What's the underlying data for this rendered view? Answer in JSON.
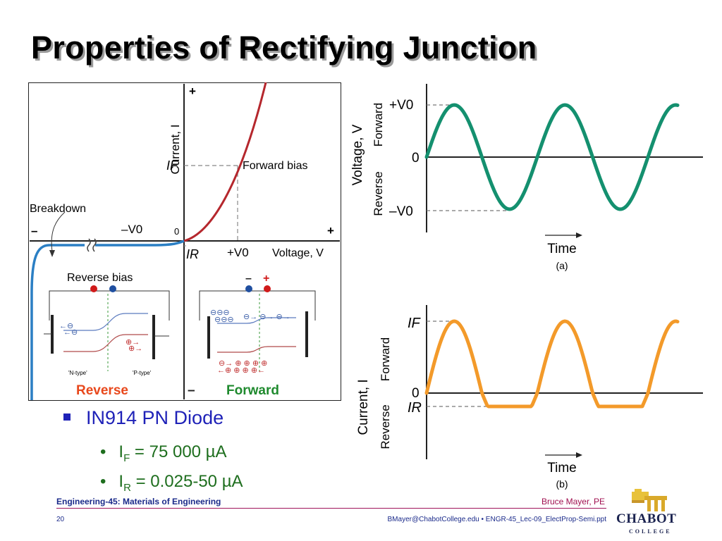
{
  "slide": {
    "title": "Properties of Rectifying Junction",
    "bullet": "IN914 PN Diode",
    "sub1": {
      "prefix": "I",
      "subscript": "F",
      "rest": " = 75 000 µA"
    },
    "sub2": {
      "prefix": "I",
      "subscript": "R",
      "rest": " = 0.025-50 µA"
    }
  },
  "iv_chart": {
    "current_axis_label": "Current, I",
    "voltage_axis_label": "Voltage, V",
    "plus_top": "+",
    "plus_right": "+",
    "minus_left": "–",
    "minus_bottom": "–",
    "origin_label": "0",
    "neg_v0_label": "–V0",
    "pos_v0_label": "+V0",
    "if_label": "IF",
    "ir_label": "IR",
    "breakdown_label": "Breakdown",
    "forward_bias_label": "Forward bias",
    "reverse_bias_label": "Reverse bias",
    "reverse_caption": "Reverse",
    "forward_caption": "Forward",
    "n_type_label": "'N-type'",
    "p_type_label": "'P-type'",
    "minus_sign": "–",
    "plus_sign": "+",
    "forward_curve_color": "#b5272d",
    "reverse_curve_color": "#2b7fc4",
    "reverse_caption_color": "#e8481c",
    "forward_caption_color": "#1f8a2e"
  },
  "voltage_chart": {
    "panel_label": "(a)",
    "y_axis_label": "Voltage, V",
    "forward_label": "Forward",
    "reverse_label": "Reverse",
    "pos_label": "+V0",
    "zero_label": "0",
    "neg_label": "–V0",
    "time_label": "Time",
    "color": "#14906f"
  },
  "current_chart": {
    "panel_label": "(b)",
    "y_axis_label": "Current, I",
    "forward_label": "Forward",
    "reverse_label": "Reverse",
    "if_label": "IF",
    "zero_label": "0",
    "ir_label": "IR",
    "time_label": "Time",
    "color": "#f39a2a"
  },
  "footer": {
    "course": "Engineering-45: Materials of Engineering",
    "author": "Bruce Mayer, PE",
    "page": "20",
    "email_file": "BMayer@ChabotCollege.edu  • ENGR-45_Lec-09_ElectProp-Semi.ppt",
    "logo_name": "CHABOT",
    "logo_sub": "COLLEGE"
  }
}
